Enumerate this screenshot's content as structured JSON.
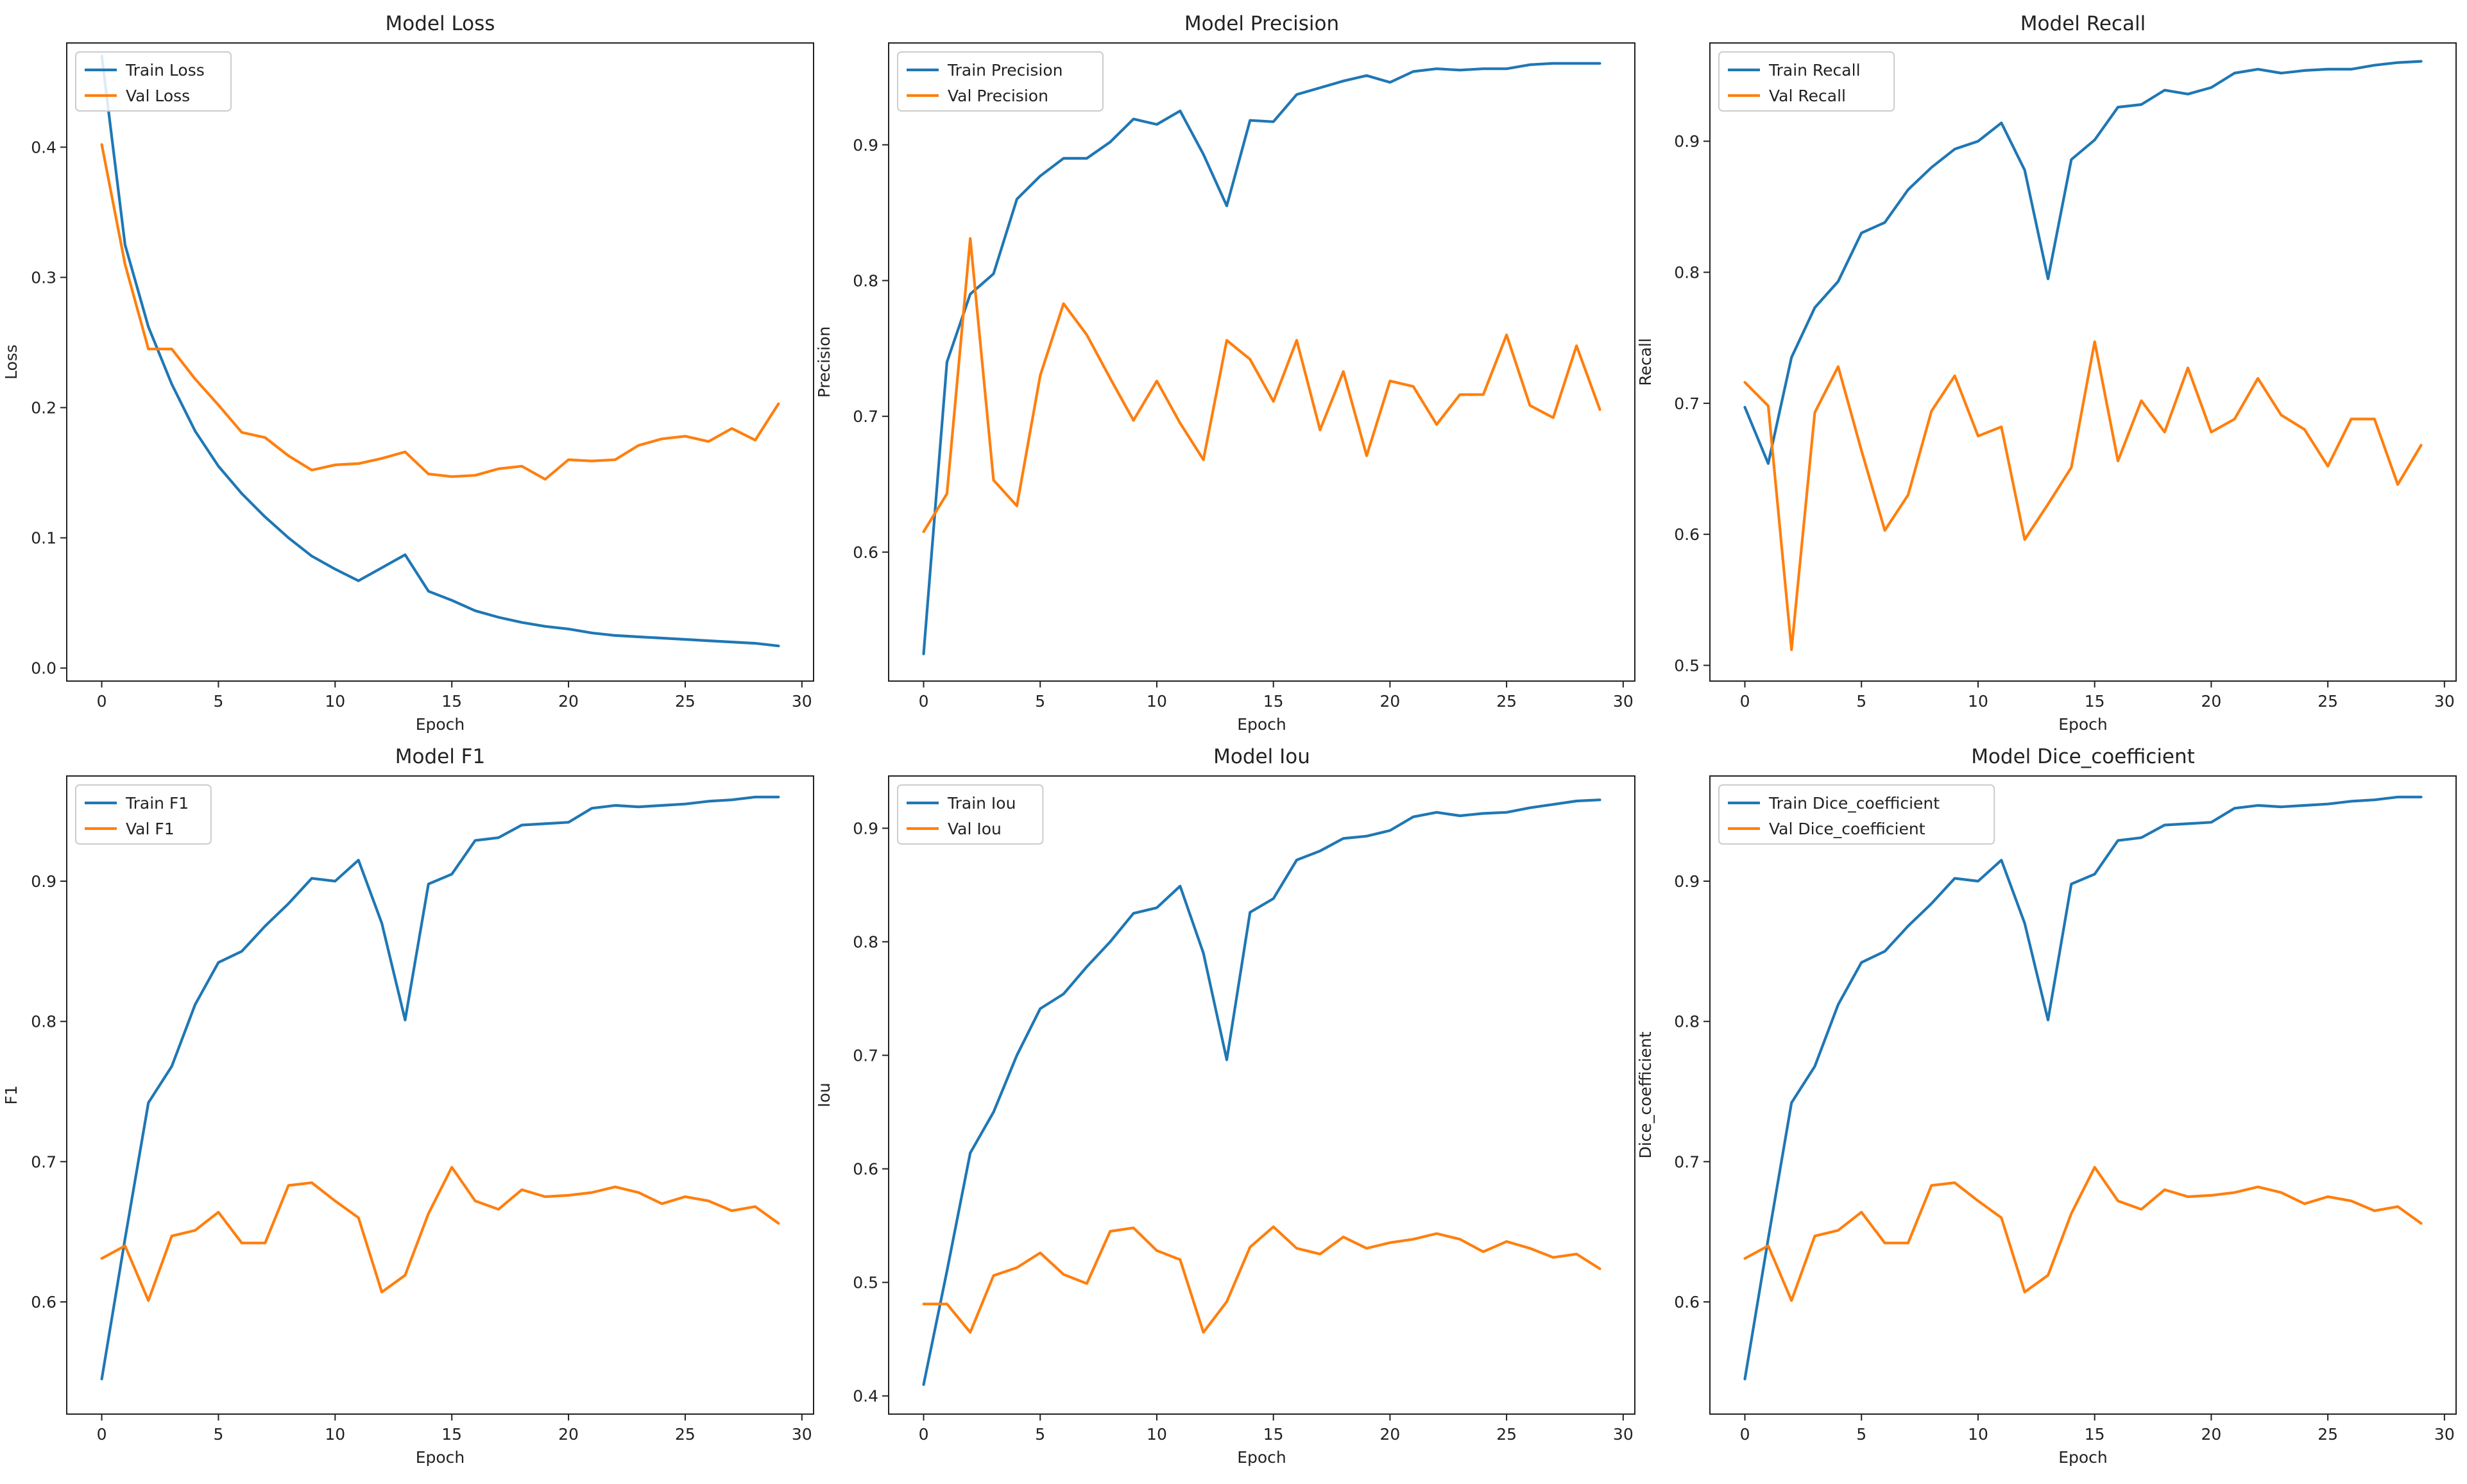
{
  "figure": {
    "background": "#ffffff"
  },
  "colors": {
    "train": "#1f77b4",
    "val": "#ff7f0e",
    "axis": "#222222"
  },
  "chart_data": [
    {
      "type": "line",
      "title": "Model Loss",
      "xlabel": "Epoch",
      "ylabel": "Loss",
      "xlim": [
        -1.5,
        30.5
      ],
      "ylim": [
        -0.01,
        0.48
      ],
      "xticks": [
        0,
        5,
        10,
        15,
        20,
        25,
        30
      ],
      "yticks": [
        0.0,
        0.1,
        0.2,
        0.3,
        0.4
      ],
      "ytick_labels": [
        "0.0",
        "0.1",
        "0.2",
        "0.3",
        "0.4"
      ],
      "legend_position": "top-left",
      "x": [
        0,
        1,
        2,
        3,
        4,
        5,
        6,
        7,
        8,
        9,
        10,
        11,
        12,
        13,
        14,
        15,
        16,
        17,
        18,
        19,
        20,
        21,
        22,
        23,
        24,
        25,
        26,
        27,
        28,
        29
      ],
      "series": [
        {
          "name": "Train Loss",
          "color": "#1f77b4",
          "values": [
            0.47,
            0.325,
            0.262,
            0.218,
            0.182,
            0.155,
            0.134,
            0.116,
            0.1,
            0.086,
            0.076,
            0.067,
            0.077,
            0.087,
            0.059,
            0.052,
            0.044,
            0.039,
            0.035,
            0.032,
            0.03,
            0.027,
            0.025,
            0.024,
            0.023,
            0.022,
            0.021,
            0.02,
            0.019,
            0.017
          ]
        },
        {
          "name": "Val Loss",
          "color": "#ff7f0e",
          "values": [
            0.402,
            0.31,
            0.245,
            0.245,
            0.222,
            0.202,
            0.181,
            0.177,
            0.163,
            0.152,
            0.156,
            0.157,
            0.161,
            0.166,
            0.149,
            0.147,
            0.148,
            0.153,
            0.155,
            0.145,
            0.16,
            0.159,
            0.16,
            0.171,
            0.176,
            0.178,
            0.174,
            0.184,
            0.175,
            0.203
          ]
        }
      ]
    },
    {
      "type": "line",
      "title": "Model Precision",
      "xlabel": "Epoch",
      "ylabel": "Precision",
      "xlim": [
        -1.5,
        30.5
      ],
      "ylim": [
        0.505,
        0.975
      ],
      "xticks": [
        0,
        5,
        10,
        15,
        20,
        25,
        30
      ],
      "yticks": [
        0.6,
        0.7,
        0.8,
        0.9
      ],
      "ytick_labels": [
        "0.6",
        "0.7",
        "0.8",
        "0.9"
      ],
      "legend_position": "top-left",
      "x": [
        0,
        1,
        2,
        3,
        4,
        5,
        6,
        7,
        8,
        9,
        10,
        11,
        12,
        13,
        14,
        15,
        16,
        17,
        18,
        19,
        20,
        21,
        22,
        23,
        24,
        25,
        26,
        27,
        28,
        29
      ],
      "series": [
        {
          "name": "Train Precision",
          "color": "#1f77b4",
          "values": [
            0.525,
            0.74,
            0.79,
            0.805,
            0.86,
            0.877,
            0.89,
            0.89,
            0.902,
            0.919,
            0.915,
            0.925,
            0.893,
            0.855,
            0.918,
            0.917,
            0.937,
            0.942,
            0.947,
            0.951,
            0.946,
            0.954,
            0.956,
            0.955,
            0.956,
            0.956,
            0.959,
            0.96,
            0.96,
            0.96
          ]
        },
        {
          "name": "Val Precision",
          "color": "#ff7f0e",
          "values": [
            0.615,
            0.643,
            0.831,
            0.653,
            0.634,
            0.73,
            0.783,
            0.76,
            0.728,
            0.697,
            0.726,
            0.695,
            0.668,
            0.756,
            0.742,
            0.711,
            0.756,
            0.69,
            0.733,
            0.671,
            0.726,
            0.722,
            0.694,
            0.716,
            0.716,
            0.76,
            0.708,
            0.699,
            0.752,
            0.705
          ]
        }
      ]
    },
    {
      "type": "line",
      "title": "Model Recall",
      "xlabel": "Epoch",
      "ylabel": "Recall",
      "xlim": [
        -1.5,
        30.5
      ],
      "ylim": [
        0.488,
        0.975
      ],
      "xticks": [
        0,
        5,
        10,
        15,
        20,
        25,
        30
      ],
      "yticks": [
        0.5,
        0.6,
        0.7,
        0.8,
        0.9
      ],
      "ytick_labels": [
        "0.5",
        "0.6",
        "0.7",
        "0.8",
        "0.9"
      ],
      "legend_position": "top-left",
      "x": [
        0,
        1,
        2,
        3,
        4,
        5,
        6,
        7,
        8,
        9,
        10,
        11,
        12,
        13,
        14,
        15,
        16,
        17,
        18,
        19,
        20,
        21,
        22,
        23,
        24,
        25,
        26,
        27,
        28,
        29
      ],
      "series": [
        {
          "name": "Train Recall",
          "color": "#1f77b4",
          "values": [
            0.697,
            0.654,
            0.735,
            0.773,
            0.793,
            0.83,
            0.838,
            0.863,
            0.88,
            0.894,
            0.9,
            0.914,
            0.878,
            0.795,
            0.886,
            0.901,
            0.926,
            0.928,
            0.939,
            0.936,
            0.941,
            0.952,
            0.955,
            0.952,
            0.954,
            0.955,
            0.955,
            0.958,
            0.96,
            0.961
          ]
        },
        {
          "name": "Val Recall",
          "color": "#ff7f0e",
          "values": [
            0.716,
            0.698,
            0.512,
            0.693,
            0.728,
            0.664,
            0.603,
            0.63,
            0.694,
            0.721,
            0.675,
            0.682,
            0.596,
            0.623,
            0.651,
            0.747,
            0.656,
            0.702,
            0.678,
            0.727,
            0.678,
            0.688,
            0.719,
            0.691,
            0.68,
            0.652,
            0.688,
            0.688,
            0.638,
            0.668
          ]
        }
      ]
    },
    {
      "type": "line",
      "title": "Model F1",
      "xlabel": "Epoch",
      "ylabel": "F1",
      "xlim": [
        -1.5,
        30.5
      ],
      "ylim": [
        0.52,
        0.975
      ],
      "xticks": [
        0,
        5,
        10,
        15,
        20,
        25,
        30
      ],
      "yticks": [
        0.6,
        0.7,
        0.8,
        0.9
      ],
      "ytick_labels": [
        "0.6",
        "0.7",
        "0.8",
        "0.9"
      ],
      "legend_position": "top-left",
      "x": [
        0,
        1,
        2,
        3,
        4,
        5,
        6,
        7,
        8,
        9,
        10,
        11,
        12,
        13,
        14,
        15,
        16,
        17,
        18,
        19,
        20,
        21,
        22,
        23,
        24,
        25,
        26,
        27,
        28,
        29
      ],
      "series": [
        {
          "name": "Train F1",
          "color": "#1f77b4",
          "values": [
            0.545,
            0.645,
            0.742,
            0.768,
            0.812,
            0.842,
            0.85,
            0.868,
            0.884,
            0.902,
            0.9,
            0.915,
            0.87,
            0.801,
            0.898,
            0.905,
            0.929,
            0.931,
            0.94,
            0.941,
            0.942,
            0.952,
            0.954,
            0.953,
            0.954,
            0.955,
            0.957,
            0.958,
            0.96,
            0.96
          ]
        },
        {
          "name": "Val F1",
          "color": "#ff7f0e",
          "values": [
            0.631,
            0.64,
            0.601,
            0.647,
            0.651,
            0.664,
            0.642,
            0.642,
            0.683,
            0.685,
            0.672,
            0.66,
            0.607,
            0.619,
            0.663,
            0.696,
            0.672,
            0.666,
            0.68,
            0.675,
            0.676,
            0.678,
            0.682,
            0.678,
            0.67,
            0.675,
            0.672,
            0.665,
            0.668,
            0.656
          ]
        }
      ]
    },
    {
      "type": "line",
      "title": "Model Iou",
      "xlabel": "Epoch",
      "ylabel": "Iou",
      "xlim": [
        -1.5,
        30.5
      ],
      "ylim": [
        0.384,
        0.946
      ],
      "xticks": [
        0,
        5,
        10,
        15,
        20,
        25,
        30
      ],
      "yticks": [
        0.4,
        0.5,
        0.6,
        0.7,
        0.8,
        0.9
      ],
      "ytick_labels": [
        "0.4",
        "0.5",
        "0.6",
        "0.7",
        "0.8",
        "0.9"
      ],
      "legend_position": "top-left",
      "x": [
        0,
        1,
        2,
        3,
        4,
        5,
        6,
        7,
        8,
        9,
        10,
        11,
        12,
        13,
        14,
        15,
        16,
        17,
        18,
        19,
        20,
        21,
        22,
        23,
        24,
        25,
        26,
        27,
        28,
        29
      ],
      "series": [
        {
          "name": "Train Iou",
          "color": "#1f77b4",
          "values": [
            0.41,
            0.51,
            0.614,
            0.65,
            0.7,
            0.741,
            0.754,
            0.778,
            0.8,
            0.825,
            0.83,
            0.849,
            0.79,
            0.696,
            0.826,
            0.838,
            0.872,
            0.88,
            0.891,
            0.893,
            0.898,
            0.91,
            0.914,
            0.911,
            0.913,
            0.914,
            0.918,
            0.921,
            0.924,
            0.925
          ]
        },
        {
          "name": "Val Iou",
          "color": "#ff7f0e",
          "values": [
            0.481,
            0.481,
            0.456,
            0.506,
            0.513,
            0.526,
            0.507,
            0.499,
            0.545,
            0.548,
            0.528,
            0.52,
            0.456,
            0.483,
            0.531,
            0.549,
            0.53,
            0.525,
            0.54,
            0.53,
            0.535,
            0.538,
            0.543,
            0.538,
            0.527,
            0.536,
            0.53,
            0.522,
            0.525,
            0.512
          ]
        }
      ]
    },
    {
      "type": "line",
      "title": "Model Dice_coefficient",
      "xlabel": "Epoch",
      "ylabel": "Dice_coefficient",
      "xlim": [
        -1.5,
        30.5
      ],
      "ylim": [
        0.52,
        0.975
      ],
      "xticks": [
        0,
        5,
        10,
        15,
        20,
        25,
        30
      ],
      "yticks": [
        0.6,
        0.7,
        0.8,
        0.9
      ],
      "ytick_labels": [
        "0.6",
        "0.7",
        "0.8",
        "0.9"
      ],
      "legend_position": "top-left",
      "x": [
        0,
        1,
        2,
        3,
        4,
        5,
        6,
        7,
        8,
        9,
        10,
        11,
        12,
        13,
        14,
        15,
        16,
        17,
        18,
        19,
        20,
        21,
        22,
        23,
        24,
        25,
        26,
        27,
        28,
        29
      ],
      "series": [
        {
          "name": "Train Dice_coefficient",
          "color": "#1f77b4",
          "values": [
            0.545,
            0.645,
            0.742,
            0.768,
            0.812,
            0.842,
            0.85,
            0.868,
            0.884,
            0.902,
            0.9,
            0.915,
            0.87,
            0.801,
            0.898,
            0.905,
            0.929,
            0.931,
            0.94,
            0.941,
            0.942,
            0.952,
            0.954,
            0.953,
            0.954,
            0.955,
            0.957,
            0.958,
            0.96,
            0.96
          ]
        },
        {
          "name": "Val Dice_coefficient",
          "color": "#ff7f0e",
          "values": [
            0.631,
            0.64,
            0.601,
            0.647,
            0.651,
            0.664,
            0.642,
            0.642,
            0.683,
            0.685,
            0.672,
            0.66,
            0.607,
            0.619,
            0.663,
            0.696,
            0.672,
            0.666,
            0.68,
            0.675,
            0.676,
            0.678,
            0.682,
            0.678,
            0.67,
            0.675,
            0.672,
            0.665,
            0.668,
            0.656
          ]
        }
      ]
    }
  ]
}
